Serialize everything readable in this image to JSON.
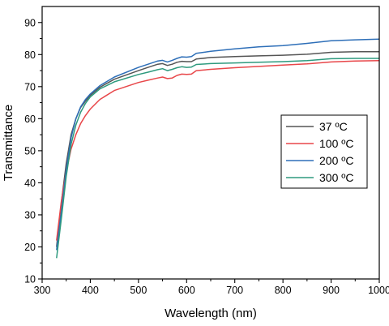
{
  "chart_data": {
    "type": "line",
    "xlabel": "Wavelength (nm)",
    "ylabel": "Transmittance",
    "xlim": [
      300,
      1000
    ],
    "ylim": [
      10,
      95
    ],
    "xticks": [
      300,
      400,
      500,
      600,
      700,
      800,
      900,
      1000
    ],
    "yticks": [
      10,
      20,
      30,
      40,
      50,
      60,
      70,
      80,
      90
    ],
    "grid": false,
    "legend_position": "center-right",
    "series": [
      {
        "name": "37 ºC",
        "color": "#555555",
        "points": [
          [
            330,
            20
          ],
          [
            340,
            34
          ],
          [
            350,
            46
          ],
          [
            360,
            55
          ],
          [
            370,
            60
          ],
          [
            380,
            63.5
          ],
          [
            390,
            65.5
          ],
          [
            400,
            67.3
          ],
          [
            420,
            69.8
          ],
          [
            450,
            72.3
          ],
          [
            500,
            75
          ],
          [
            520,
            76
          ],
          [
            540,
            77
          ],
          [
            550,
            77.2
          ],
          [
            560,
            76.6
          ],
          [
            570,
            77
          ],
          [
            580,
            77.6
          ],
          [
            590,
            77.9
          ],
          [
            600,
            77.8
          ],
          [
            610,
            77.8
          ],
          [
            620,
            78.6
          ],
          [
            650,
            79.1
          ],
          [
            700,
            79.4
          ],
          [
            750,
            79.6
          ],
          [
            800,
            79.8
          ],
          [
            850,
            80.1
          ],
          [
            900,
            80.7
          ],
          [
            950,
            80.9
          ],
          [
            1000,
            80.9
          ]
        ]
      },
      {
        "name": "100 ºC",
        "color": "#e8474a",
        "points": [
          [
            330,
            22
          ],
          [
            340,
            34.5
          ],
          [
            350,
            43.5
          ],
          [
            360,
            50.5
          ],
          [
            370,
            55
          ],
          [
            380,
            58.5
          ],
          [
            390,
            61
          ],
          [
            400,
            63
          ],
          [
            420,
            66
          ],
          [
            450,
            68.8
          ],
          [
            500,
            71.3
          ],
          [
            520,
            72
          ],
          [
            540,
            72.7
          ],
          [
            550,
            73
          ],
          [
            560,
            72.5
          ],
          [
            570,
            72.7
          ],
          [
            580,
            73.5
          ],
          [
            590,
            73.9
          ],
          [
            600,
            73.8
          ],
          [
            610,
            73.9
          ],
          [
            620,
            75
          ],
          [
            650,
            75.4
          ],
          [
            700,
            75.9
          ],
          [
            750,
            76.3
          ],
          [
            800,
            76.7
          ],
          [
            850,
            77.1
          ],
          [
            900,
            77.7
          ],
          [
            950,
            78
          ],
          [
            1000,
            78.1
          ]
        ]
      },
      {
        "name": "200 ºC",
        "color": "#2e6fb8",
        "points": [
          [
            330,
            19
          ],
          [
            340,
            31
          ],
          [
            350,
            44
          ],
          [
            360,
            54
          ],
          [
            370,
            60
          ],
          [
            380,
            63.7
          ],
          [
            390,
            66
          ],
          [
            400,
            67.7
          ],
          [
            420,
            70.3
          ],
          [
            450,
            73
          ],
          [
            500,
            76
          ],
          [
            520,
            77
          ],
          [
            540,
            78
          ],
          [
            550,
            78.2
          ],
          [
            560,
            77.7
          ],
          [
            570,
            78.2
          ],
          [
            580,
            78.8
          ],
          [
            590,
            79.3
          ],
          [
            600,
            79.2
          ],
          [
            610,
            79.4
          ],
          [
            620,
            80.4
          ],
          [
            650,
            81
          ],
          [
            700,
            81.8
          ],
          [
            750,
            82.4
          ],
          [
            800,
            82.8
          ],
          [
            850,
            83.5
          ],
          [
            900,
            84.3
          ],
          [
            950,
            84.6
          ],
          [
            1000,
            84.8
          ]
        ]
      },
      {
        "name": "300 ºC",
        "color": "#2e9a7e",
        "points": [
          [
            330,
            16.5
          ],
          [
            340,
            29
          ],
          [
            350,
            42
          ],
          [
            360,
            52
          ],
          [
            370,
            58
          ],
          [
            380,
            62
          ],
          [
            390,
            64.8
          ],
          [
            400,
            66.8
          ],
          [
            420,
            69.3
          ],
          [
            450,
            71.5
          ],
          [
            500,
            73.8
          ],
          [
            520,
            74.5
          ],
          [
            540,
            75.3
          ],
          [
            550,
            75.6
          ],
          [
            560,
            75
          ],
          [
            570,
            75.4
          ],
          [
            580,
            75.9
          ],
          [
            590,
            76.2
          ],
          [
            600,
            76
          ],
          [
            610,
            76.1
          ],
          [
            620,
            76.9
          ],
          [
            650,
            77.2
          ],
          [
            700,
            77.4
          ],
          [
            750,
            77.6
          ],
          [
            800,
            77.8
          ],
          [
            850,
            78.1
          ],
          [
            900,
            78.7
          ],
          [
            950,
            78.8
          ],
          [
            1000,
            78.8
          ]
        ]
      }
    ]
  }
}
